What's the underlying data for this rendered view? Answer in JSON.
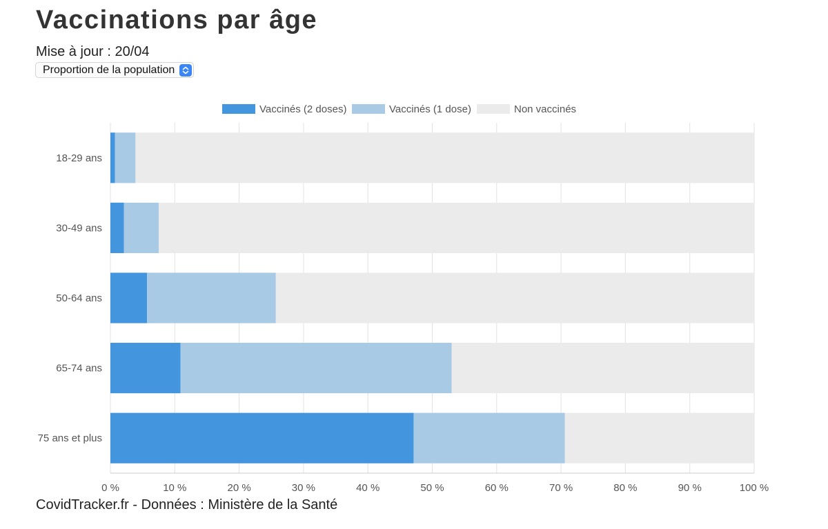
{
  "page": {
    "title": "Vaccinations par âge",
    "updated": "Mise à jour : 20/04",
    "select_value": "Proportion de la population",
    "footer": "CovidTracker.fr - Données : Ministère de la Santé"
  },
  "icons": {
    "select": "chevron-up-down-icon"
  },
  "chart_data": {
    "type": "bar",
    "orientation": "horizontal",
    "stacked": true,
    "categories": [
      "18-29 ans",
      "30-49 ans",
      "50-64 ans",
      "65-74 ans",
      "75 ans et plus"
    ],
    "series": [
      {
        "name": "Vaccinés (2 doses)",
        "color": "#4395de",
        "values": [
          0.7,
          2.1,
          5.7,
          10.9,
          47.1
        ]
      },
      {
        "name": "Vaccinés (1 dose)",
        "color": "#a9cae4",
        "values": [
          3.2,
          5.4,
          20.0,
          42.1,
          23.5
        ]
      },
      {
        "name": "Non vaccinés",
        "color": "#ebebeb",
        "values": [
          96.1,
          92.5,
          74.3,
          47.0,
          29.4
        ]
      }
    ],
    "xlim": [
      0,
      100
    ],
    "xticks": [
      "0 %",
      "10 %",
      "20 %",
      "30 %",
      "40 %",
      "50 %",
      "60 %",
      "70 %",
      "80 %",
      "90 %",
      "100 %"
    ],
    "grid": true,
    "legend_position": "top"
  }
}
